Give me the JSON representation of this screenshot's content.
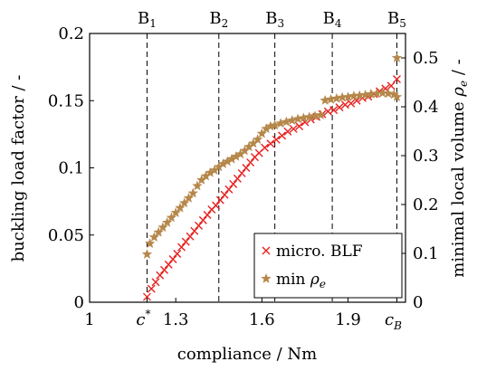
{
  "chart_data": {
    "type": "scatter",
    "xlabel": "compliance / Nm",
    "ylabel_left": "buckling load factor / -",
    "ylabel_right_prefix": "minimal local volume ",
    "ylabel_right_symbol": "ρ",
    "ylabel_right_sub": "e",
    "ylabel_right_suffix": " / -",
    "xlim": [
      1.0,
      2.1
    ],
    "ylim_left": [
      0,
      0.2
    ],
    "ylim_right": [
      0,
      0.55
    ],
    "x_ticks": [
      {
        "value": 1.0,
        "label": "1"
      },
      {
        "value": 1.3,
        "label": "1.3"
      },
      {
        "value": 1.6,
        "label": "1.6"
      },
      {
        "value": 1.9,
        "label": "1.9"
      }
    ],
    "x_special_ticks": [
      {
        "value": 1.2,
        "label": "c",
        "sup": "*"
      },
      {
        "value": 2.07,
        "label": "c",
        "sub": "B"
      }
    ],
    "y_left_ticks": [
      {
        "value": 0,
        "label": "0"
      },
      {
        "value": 0.05,
        "label": "0.05"
      },
      {
        "value": 0.1,
        "label": "0.1"
      },
      {
        "value": 0.15,
        "label": "0.15"
      },
      {
        "value": 0.2,
        "label": "0.2"
      }
    ],
    "y_right_ticks": [
      {
        "value": 0,
        "label": "0"
      },
      {
        "value": 0.1,
        "label": "0.1"
      },
      {
        "value": 0.2,
        "label": "0.2"
      },
      {
        "value": 0.3,
        "label": "0.3"
      },
      {
        "value": 0.4,
        "label": "0.4"
      },
      {
        "value": 0.5,
        "label": "0.5"
      }
    ],
    "vlines": [
      {
        "x": 1.2,
        "label": "B",
        "sub": "1"
      },
      {
        "x": 1.45,
        "label": "B",
        "sub": "2"
      },
      {
        "x": 1.645,
        "label": "B",
        "sub": "3"
      },
      {
        "x": 1.845,
        "label": "B",
        "sub": "4"
      },
      {
        "x": 2.07,
        "label": "B",
        "sub": "5"
      }
    ],
    "grid": false,
    "legend_position": "bottom-right",
    "series": [
      {
        "name": "micro. BLF",
        "axis": "left",
        "marker": "x",
        "color": "#e8201f",
        "x": [
          1.2,
          1.215,
          1.23,
          1.245,
          1.26,
          1.275,
          1.29,
          1.305,
          1.32,
          1.335,
          1.35,
          1.365,
          1.38,
          1.395,
          1.41,
          1.425,
          1.44,
          1.455,
          1.47,
          1.485,
          1.5,
          1.515,
          1.53,
          1.545,
          1.56,
          1.575,
          1.59,
          1.61,
          1.63,
          1.65,
          1.67,
          1.69,
          1.71,
          1.73,
          1.75,
          1.77,
          1.79,
          1.81,
          1.83,
          1.85,
          1.87,
          1.89,
          1.91,
          1.93,
          1.95,
          1.97,
          1.99,
          2.01,
          2.03,
          2.05,
          2.07
        ],
        "y": [
          0.004,
          0.01,
          0.015,
          0.02,
          0.024,
          0.028,
          0.032,
          0.036,
          0.041,
          0.045,
          0.049,
          0.053,
          0.057,
          0.061,
          0.065,
          0.069,
          0.072,
          0.076,
          0.08,
          0.084,
          0.088,
          0.092,
          0.096,
          0.1,
          0.104,
          0.108,
          0.111,
          0.115,
          0.118,
          0.121,
          0.124,
          0.127,
          0.129,
          0.131,
          0.134,
          0.136,
          0.138,
          0.14,
          0.142,
          0.143,
          0.145,
          0.147,
          0.148,
          0.15,
          0.152,
          0.153,
          0.155,
          0.157,
          0.159,
          0.161,
          0.166
        ]
      },
      {
        "name": "min ρₑ",
        "axis": "right",
        "marker": "star",
        "color": "#b5874a",
        "x": [
          1.2,
          1.21,
          1.225,
          1.24,
          1.255,
          1.27,
          1.285,
          1.3,
          1.315,
          1.33,
          1.345,
          1.36,
          1.375,
          1.39,
          1.405,
          1.42,
          1.435,
          1.45,
          1.465,
          1.48,
          1.495,
          1.51,
          1.525,
          1.54,
          1.555,
          1.57,
          1.585,
          1.6,
          1.615,
          1.63,
          1.645,
          1.665,
          1.685,
          1.705,
          1.725,
          1.745,
          1.765,
          1.785,
          1.805,
          1.82,
          1.84,
          1.86,
          1.88,
          1.9,
          1.92,
          1.94,
          1.96,
          1.98,
          2.0,
          2.02,
          2.04,
          2.06,
          2.07,
          2.07
        ],
        "y": [
          0.098,
          0.12,
          0.133,
          0.143,
          0.153,
          0.163,
          0.173,
          0.183,
          0.193,
          0.203,
          0.213,
          0.223,
          0.238,
          0.25,
          0.258,
          0.265,
          0.27,
          0.277,
          0.283,
          0.288,
          0.293,
          0.298,
          0.303,
          0.31,
          0.318,
          0.325,
          0.333,
          0.345,
          0.355,
          0.36,
          0.362,
          0.366,
          0.369,
          0.372,
          0.375,
          0.377,
          0.379,
          0.381,
          0.383,
          0.413,
          0.415,
          0.417,
          0.419,
          0.42,
          0.422,
          0.423,
          0.424,
          0.426,
          0.427,
          0.428,
          0.427,
          0.425,
          0.42,
          0.5
        ]
      }
    ]
  }
}
